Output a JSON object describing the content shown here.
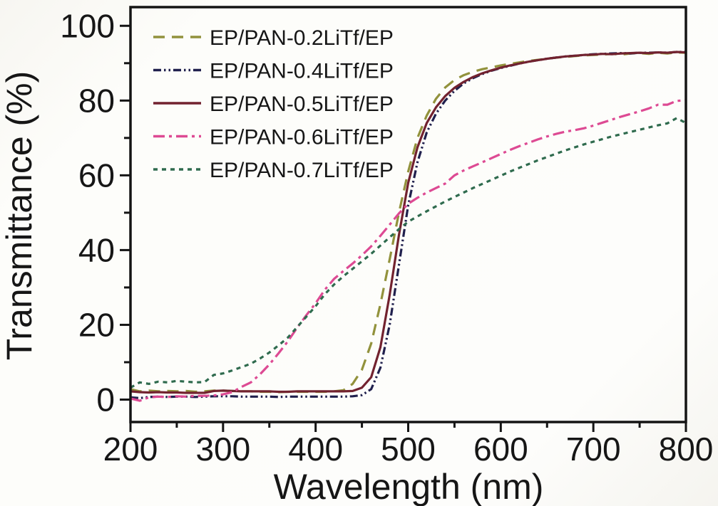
{
  "figure": {
    "kind": "UV-Vis transmittance spectra figure",
    "x_axis_title": "Wavelength (nm)",
    "y_axis_title": "Transmittance (%)"
  },
  "colors": {
    "axis": "#141414",
    "text": "#161616",
    "background": "#fdfdfa",
    "series_olive": "#92923c",
    "series_navy": "#20204d",
    "series_maroon": "#72222f",
    "series_pink": "#dd4a93",
    "series_green": "#2f6b4e"
  },
  "chart_data": {
    "type": "line",
    "title": "",
    "xlabel": "Wavelength (nm)",
    "ylabel": "Transmittance (%)",
    "xlim": [
      200,
      800
    ],
    "ylim": [
      -6,
      105
    ],
    "x_ticks": [
      200,
      300,
      400,
      500,
      600,
      700,
      800
    ],
    "x_minor_ticks": [
      250,
      350,
      450,
      550,
      650,
      750
    ],
    "y_ticks": [
      0,
      20,
      40,
      60,
      80,
      100
    ],
    "y_minor_ticks": [
      10,
      30,
      50,
      70,
      90
    ],
    "grid": false,
    "legend_position": "top-left-inside",
    "x": [
      200,
      210,
      220,
      230,
      240,
      250,
      260,
      270,
      280,
      290,
      300,
      310,
      320,
      330,
      340,
      350,
      360,
      370,
      380,
      390,
      400,
      410,
      420,
      430,
      440,
      450,
      460,
      470,
      480,
      490,
      500,
      510,
      520,
      530,
      540,
      550,
      560,
      570,
      580,
      590,
      600,
      610,
      620,
      630,
      640,
      650,
      660,
      670,
      680,
      690,
      700,
      710,
      720,
      730,
      740,
      750,
      760,
      770,
      780,
      790,
      800
    ],
    "series": [
      {
        "name": "EP/PAN-0.2LiTf/EP",
        "color": "#92923c",
        "dash": "16 10",
        "values": [
          2.8,
          2.2,
          2.4,
          2.2,
          2.3,
          2.2,
          2.3,
          2.1,
          2.2,
          2.4,
          2.4,
          2.3,
          2.2,
          2.2,
          2.1,
          2.1,
          2.0,
          2.1,
          2.1,
          2.1,
          2.1,
          2.1,
          2.2,
          2.5,
          4.2,
          8.0,
          15.0,
          25.5,
          37.5,
          50.0,
          61.0,
          70.0,
          76.0,
          80.5,
          83.5,
          85.5,
          86.8,
          87.7,
          88.4,
          88.9,
          89.4,
          89.8,
          90.2,
          90.6,
          90.9,
          91.2,
          91.5,
          91.7,
          91.9,
          92.1,
          92.2,
          92.3,
          92.5,
          92.3,
          92.6,
          92.7,
          92.5,
          92.8,
          92.6,
          92.9,
          92.8
        ]
      },
      {
        "name": "EP/PAN-0.4LiTf/EP",
        "color": "#20204d",
        "dash": "11 4 2.5 4 2.5 4",
        "values": [
          0.6,
          0.4,
          0.7,
          0.8,
          0.7,
          0.8,
          0.8,
          0.7,
          0.8,
          0.9,
          0.9,
          0.9,
          0.8,
          0.8,
          0.8,
          0.8,
          0.7,
          0.8,
          0.8,
          0.8,
          0.8,
          0.8,
          0.8,
          0.8,
          0.9,
          1.2,
          2.8,
          8.5,
          20.0,
          36.0,
          52.0,
          63.5,
          71.5,
          76.5,
          80.0,
          82.6,
          84.6,
          86.0,
          87.1,
          88.0,
          88.7,
          89.3,
          89.9,
          90.4,
          90.8,
          91.2,
          91.5,
          91.8,
          92.0,
          92.2,
          92.4,
          92.5,
          92.6,
          92.7,
          92.6,
          92.8,
          92.8,
          92.9,
          92.8,
          93.0,
          93.0
        ]
      },
      {
        "name": "EP/PAN-0.5LiTf/EP",
        "color": "#72222f",
        "dash": "",
        "values": [
          2.2,
          2.0,
          1.9,
          2.0,
          1.9,
          1.9,
          1.8,
          1.8,
          1.8,
          2.3,
          2.4,
          2.3,
          2.2,
          2.2,
          2.2,
          2.2,
          2.1,
          2.1,
          2.2,
          2.2,
          2.2,
          2.2,
          2.2,
          2.2,
          2.3,
          3.2,
          6.0,
          14.0,
          28.0,
          44.0,
          58.0,
          67.5,
          74.0,
          78.2,
          81.2,
          83.4,
          85.0,
          86.3,
          87.3,
          88.1,
          88.8,
          89.4,
          89.9,
          90.4,
          90.8,
          91.2,
          91.5,
          91.8,
          92.0,
          92.2,
          92.3,
          92.5,
          92.4,
          92.6,
          92.7,
          92.8,
          92.7,
          92.9,
          92.8,
          93.0,
          92.9
        ]
      },
      {
        "name": "EP/PAN-0.6LiTf/EP",
        "color": "#dd4a93",
        "dash": "16 6 4 6",
        "values": [
          0.3,
          -0.3,
          0.6,
          0.8,
          0.7,
          0.9,
          0.8,
          1.0,
          1.0,
          1.1,
          1.4,
          2.0,
          3.4,
          4.6,
          6.8,
          9.4,
          12.4,
          15.6,
          19.2,
          22.6,
          25.8,
          29.4,
          32.3,
          34.4,
          36.4,
          38.6,
          41.0,
          43.8,
          46.8,
          49.8,
          52.4,
          54.0,
          55.4,
          56.6,
          57.8,
          60.0,
          61.3,
          62.4,
          63.5,
          64.6,
          65.7,
          66.8,
          67.8,
          68.7,
          69.6,
          70.4,
          71.1,
          71.7,
          72.1,
          72.6,
          73.3,
          74.1,
          74.9,
          75.7,
          76.4,
          77.1,
          77.9,
          78.9,
          78.9,
          79.9,
          80.1
        ]
      },
      {
        "name": "EP/PAN-0.7LiTf/EP",
        "color": "#2f6b4e",
        "dash": "6 6",
        "values": [
          3.2,
          4.6,
          4.2,
          4.8,
          4.6,
          5.0,
          4.8,
          4.6,
          4.7,
          6.6,
          7.0,
          7.8,
          8.7,
          9.6,
          11.0,
          12.6,
          14.5,
          16.6,
          19.4,
          22.2,
          25.0,
          28.2,
          30.8,
          33.0,
          35.0,
          37.0,
          39.0,
          41.2,
          43.4,
          45.6,
          47.6,
          49.0,
          50.4,
          51.7,
          53.0,
          54.2,
          55.4,
          56.6,
          57.7,
          58.8,
          59.9,
          61.0,
          62.0,
          63.0,
          64.0,
          64.9,
          65.8,
          66.7,
          67.5,
          68.3,
          69.0,
          69.7,
          70.4,
          71.0,
          71.6,
          72.2,
          72.8,
          73.4,
          73.9,
          75.3,
          74.0
        ]
      }
    ]
  }
}
